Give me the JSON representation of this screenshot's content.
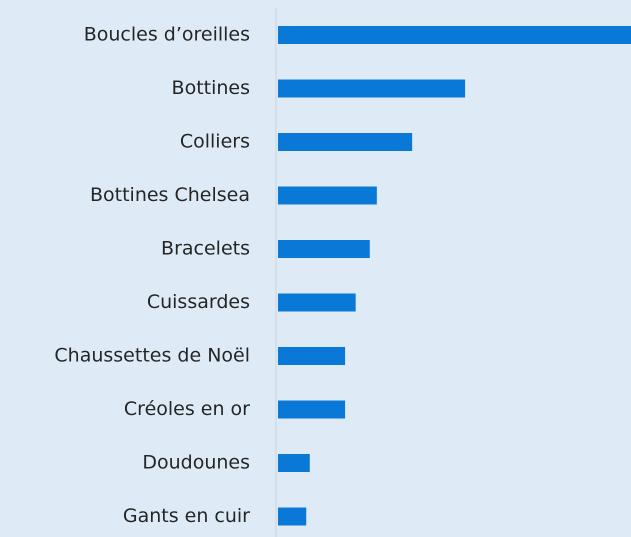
{
  "chart_data": {
    "type": "bar",
    "orientation": "horizontal",
    "categories": [
      "Boucles d’oreilles",
      "Bottines",
      "Colliers",
      "Bottines Chelsea",
      "Bracelets",
      "Cuissardes",
      "Chaussettes de Noël",
      "Créoles en or",
      "Doudounes",
      "Gants en cuir"
    ],
    "values": [
      100,
      53,
      38,
      28,
      26,
      22,
      19,
      19,
      9,
      8
    ],
    "color": "#0a78d7"
  }
}
